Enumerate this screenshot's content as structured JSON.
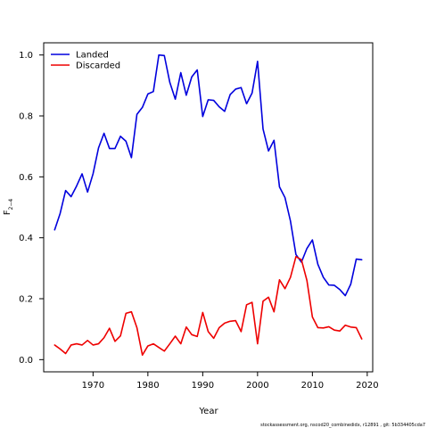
{
  "chart_data": {
    "type": "line",
    "xlabel": "Year",
    "ylabel_main": "F",
    "ylabel_sub": "2−4",
    "xlim": [
      1961,
      2021
    ],
    "ylim": [
      -0.04,
      1.04
    ],
    "xticks": [
      1970,
      1980,
      1990,
      2000,
      2010,
      2020
    ],
    "yticks": [
      0.0,
      0.2,
      0.4,
      0.6,
      0.8,
      1.0
    ],
    "ytick_labels": [
      "0.0",
      "0.2",
      "0.4",
      "0.6",
      "0.8",
      "1.0"
    ],
    "grid": false,
    "legend_position": "top-left",
    "x": [
      1963,
      1964,
      1965,
      1966,
      1967,
      1968,
      1969,
      1970,
      1971,
      1972,
      1973,
      1974,
      1975,
      1976,
      1977,
      1978,
      1979,
      1980,
      1981,
      1982,
      1983,
      1984,
      1985,
      1986,
      1987,
      1988,
      1989,
      1990,
      1991,
      1992,
      1993,
      1994,
      1995,
      1996,
      1997,
      1998,
      1999,
      2000,
      2001,
      2002,
      2003,
      2004,
      2005,
      2006,
      2007,
      2008,
      2009,
      2010,
      2011,
      2012,
      2013,
      2014,
      2015,
      2016,
      2017,
      2018,
      2019
    ],
    "series": [
      {
        "name": "Landed",
        "color": "#0000dd",
        "values": [
          0.426,
          0.48,
          0.555,
          0.535,
          0.57,
          0.61,
          0.55,
          0.61,
          0.695,
          0.743,
          0.693,
          0.693,
          0.733,
          0.717,
          0.663,
          0.805,
          0.828,
          0.872,
          0.88,
          1.0,
          0.998,
          0.91,
          0.855,
          0.942,
          0.868,
          0.928,
          0.951,
          0.798,
          0.853,
          0.851,
          0.83,
          0.815,
          0.87,
          0.888,
          0.893,
          0.84,
          0.875,
          0.979,
          0.757,
          0.685,
          0.72,
          0.567,
          0.532,
          0.455,
          0.345,
          0.32,
          0.365,
          0.393,
          0.313,
          0.27,
          0.245,
          0.244,
          0.23,
          0.21,
          0.248,
          0.33,
          0.328
        ]
      },
      {
        "name": "Discarded",
        "color": "#ee0000",
        "values": [
          0.048,
          0.035,
          0.02,
          0.048,
          0.052,
          0.048,
          0.063,
          0.048,
          0.052,
          0.072,
          0.103,
          0.06,
          0.078,
          0.152,
          0.157,
          0.105,
          0.015,
          0.045,
          0.052,
          0.04,
          0.028,
          0.052,
          0.077,
          0.052,
          0.107,
          0.082,
          0.076,
          0.155,
          0.092,
          0.07,
          0.105,
          0.12,
          0.126,
          0.128,
          0.092,
          0.18,
          0.188,
          0.052,
          0.192,
          0.205,
          0.157,
          0.262,
          0.233,
          0.27,
          0.338,
          0.328,
          0.26,
          0.14,
          0.105,
          0.104,
          0.108,
          0.097,
          0.094,
          0.113,
          0.107,
          0.105,
          0.068
        ]
      }
    ]
  },
  "footer": {
    "text": "stockassessment.org, nscod20_combinedidx, r12891 , git: 5b334405cda7"
  }
}
